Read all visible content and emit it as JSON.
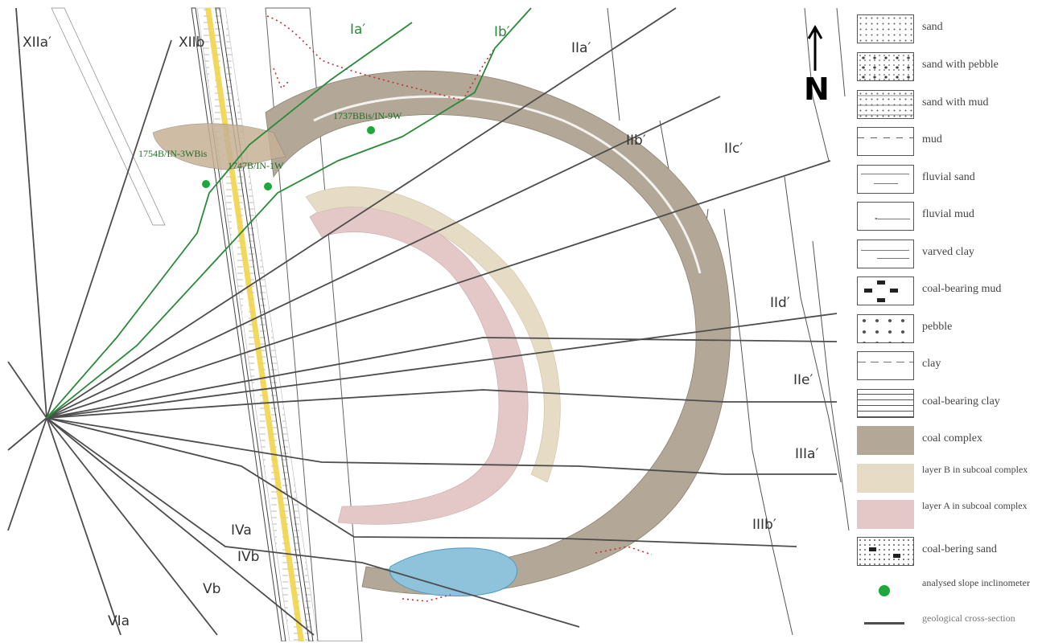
{
  "sections": {
    "XIIa": "XIIa′",
    "XIIb": "XIIb",
    "Ia": "Ia′",
    "Ib": "Ib′",
    "IIa": "IIa′",
    "IIb": "IIb′",
    "IIc": "IIc′",
    "IId": "IId′",
    "IIe": "IIe′",
    "IIIa": "IIIa′",
    "IIIb": "IIIb′",
    "IVa": "IVa",
    "IVb": "IVb",
    "Vb": "Vb",
    "VIa": "VIa"
  },
  "inclinometers": [
    {
      "label": "1754B/IN-3WBis"
    },
    {
      "label": "1747B/IN-1W"
    },
    {
      "label": "1737BBis/IN-9W"
    }
  ],
  "north_label": "N",
  "legend": [
    {
      "label": "sand"
    },
    {
      "label": "sand with pebble"
    },
    {
      "label": "sand with mud"
    },
    {
      "label": "mud"
    },
    {
      "label": "fluvial sand"
    },
    {
      "label": "fluvial mud"
    },
    {
      "label": "varved clay"
    },
    {
      "label": "coal-bearing mud"
    },
    {
      "label": "pebble"
    },
    {
      "label": "clay"
    },
    {
      "label": "coal-bearing clay"
    },
    {
      "label": "coal complex"
    },
    {
      "label": "layer B in subcoal complex"
    },
    {
      "label": "layer A in subcoal complex"
    },
    {
      "label": "coal-bering sand"
    },
    {
      "label": "analysed slope inclinometer"
    },
    {
      "label": "geological cross-section"
    }
  ],
  "colors": {
    "coal_complex": "#b3a898",
    "layer_b": "#e6dcc6",
    "layer_a": "#e4c8c8",
    "water": "#8fc3dc",
    "green": "#2a8a3a",
    "section_line": "#4d4d4d",
    "boundary": "#c03030"
  }
}
